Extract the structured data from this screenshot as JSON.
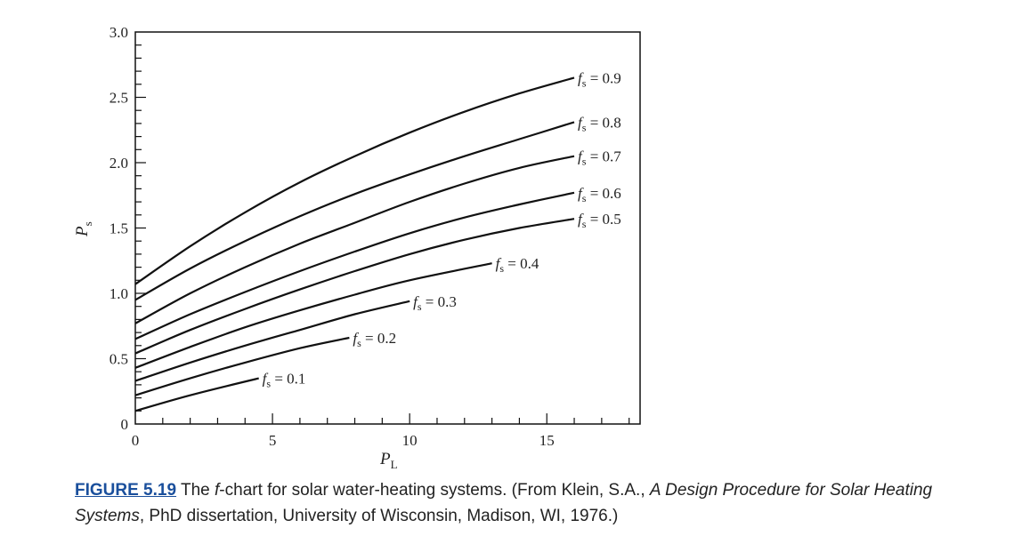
{
  "chart_data": {
    "type": "line",
    "xlabel": "P",
    "xlabel_sub": "L",
    "ylabel": "P",
    "ylabel_sub": "s",
    "xlim": [
      0,
      18.4
    ],
    "ylim": [
      0,
      3.0
    ],
    "x_ticks": [
      0,
      5,
      10,
      15
    ],
    "y_ticks": [
      "0",
      "0.5",
      "1.0",
      "1.5",
      "2.0",
      "2.5",
      "3.0"
    ],
    "y_tick_values": [
      0,
      0.5,
      1.0,
      1.5,
      2.0,
      2.5,
      3.0
    ],
    "grid": false,
    "series": [
      {
        "name": "f = 0.9",
        "label_sym": "f",
        "label_sub": "s",
        "label_val": " = 0.9",
        "x": [
          0,
          2,
          4,
          6,
          8,
          10,
          12,
          14,
          16
        ],
        "y": [
          1.07,
          1.36,
          1.62,
          1.85,
          2.05,
          2.23,
          2.39,
          2.53,
          2.65
        ]
      },
      {
        "name": "f = 0.8",
        "label_sym": "f",
        "label_sub": "s",
        "label_val": " = 0.8",
        "x": [
          0,
          2,
          4,
          6,
          8,
          10,
          12,
          14,
          16
        ],
        "y": [
          0.95,
          1.19,
          1.4,
          1.59,
          1.76,
          1.91,
          2.05,
          2.18,
          2.31
        ]
      },
      {
        "name": "f = 0.7",
        "label_sym": "f",
        "label_sub": "s",
        "label_val": " = 0.7",
        "x": [
          0,
          2,
          4,
          6,
          8,
          10,
          12,
          14,
          16
        ],
        "y": [
          0.77,
          1.0,
          1.2,
          1.38,
          1.54,
          1.7,
          1.84,
          1.96,
          2.05
        ]
      },
      {
        "name": "f = 0.6",
        "label_sym": "f",
        "label_sub": "s",
        "label_val": " = 0.6",
        "x": [
          0,
          2,
          4,
          6,
          8,
          10,
          12,
          14,
          16
        ],
        "y": [
          0.65,
          0.84,
          1.01,
          1.17,
          1.32,
          1.46,
          1.58,
          1.68,
          1.77
        ]
      },
      {
        "name": "f = 0.5",
        "label_sym": "f",
        "label_sub": "s",
        "label_val": " = 0.5",
        "x": [
          0,
          2,
          4,
          6,
          8,
          10,
          12,
          14,
          16
        ],
        "y": [
          0.54,
          0.72,
          0.88,
          1.03,
          1.17,
          1.3,
          1.41,
          1.5,
          1.57
        ]
      },
      {
        "name": "f = 0.4",
        "label_sym": "f",
        "label_sub": "s",
        "label_val": " = 0.4",
        "x": [
          0,
          2,
          4,
          6,
          8,
          10,
          13
        ],
        "y": [
          0.43,
          0.59,
          0.74,
          0.87,
          0.99,
          1.1,
          1.23
        ]
      },
      {
        "name": "f = 0.3",
        "label_sym": "f",
        "label_sub": "s",
        "label_val": " = 0.3",
        "x": [
          0,
          2,
          4,
          6,
          8,
          10
        ],
        "y": [
          0.33,
          0.47,
          0.6,
          0.72,
          0.84,
          0.94
        ]
      },
      {
        "name": "f = 0.2",
        "label_sym": "f",
        "label_sub": "s",
        "label_val": " = 0.2",
        "x": [
          0,
          2,
          4,
          6,
          7.8
        ],
        "y": [
          0.22,
          0.35,
          0.47,
          0.58,
          0.66
        ]
      },
      {
        "name": "f = 0.1",
        "label_sym": "f",
        "label_sub": "s",
        "label_val": " = 0.1",
        "x": [
          0,
          2,
          4.5
        ],
        "y": [
          0.1,
          0.22,
          0.35
        ]
      }
    ]
  },
  "caption": {
    "figure_ref": "FIGURE 5.19",
    "text_a": " The ",
    "text_f": "f",
    "text_b": "-chart for solar water-heating systems. (From Klein, S.A., ",
    "text_title": "A Design Procedure for Solar Heating Systems",
    "text_c": ", PhD dissertation, University of Wisconsin, Madison, WI, 1976.)"
  }
}
